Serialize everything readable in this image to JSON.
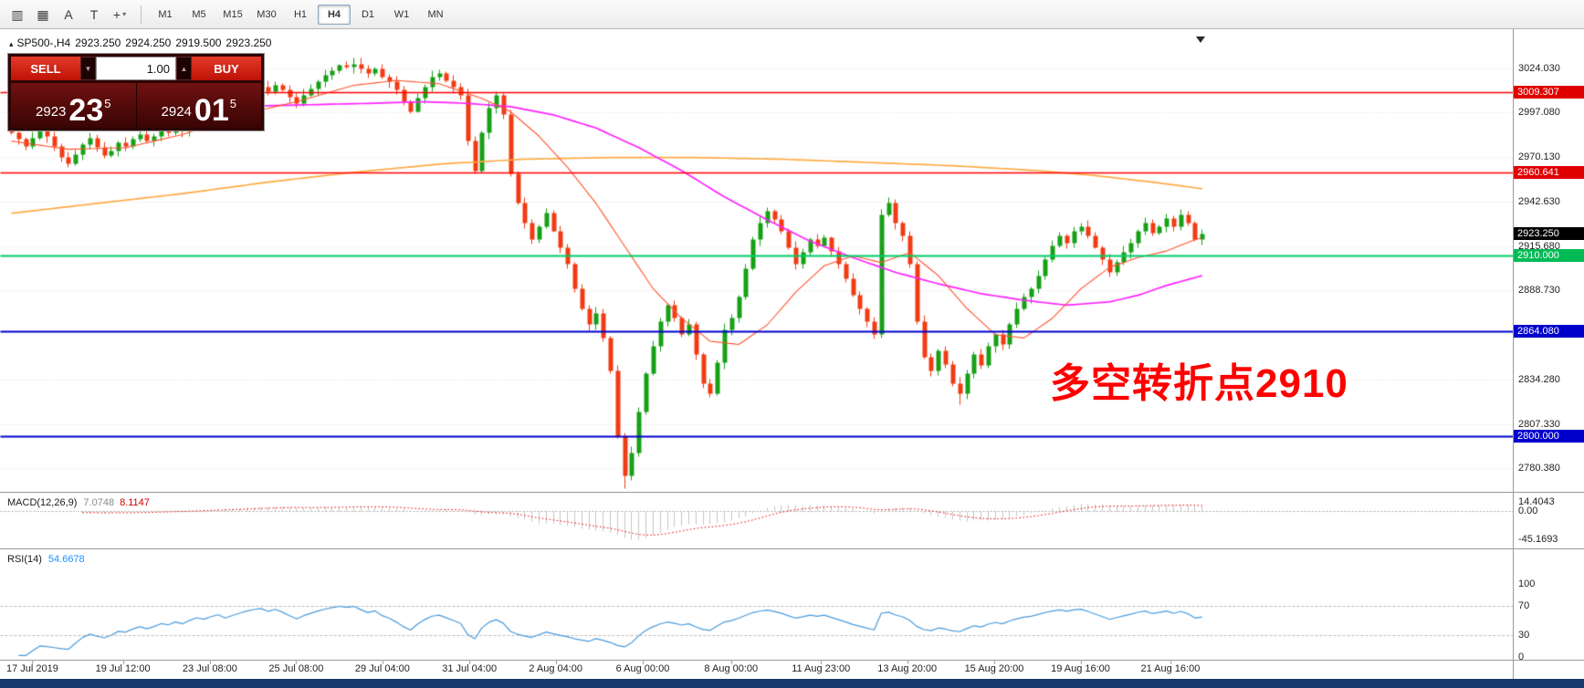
{
  "toolbar": {
    "icons": [
      {
        "name": "chart-properties-icon",
        "glyph": "▥",
        "caret": ""
      },
      {
        "name": "grid-icon",
        "glyph": "▦",
        "caret": ""
      },
      {
        "name": "font-icon",
        "glyph": "A",
        "caret": ""
      },
      {
        "name": "text-tool-icon",
        "glyph": "T",
        "caret": ""
      },
      {
        "name": "cursor-tool-icon",
        "glyph": "+",
        "caret": "▾"
      }
    ],
    "timeframes": [
      "M1",
      "M5",
      "M15",
      "M30",
      "H1",
      "H4",
      "D1",
      "W1",
      "MN"
    ],
    "active_timeframe": "H4"
  },
  "chart_header": {
    "collapse_icon": "▴",
    "symbol_period": "SP500-,H4",
    "open": "2923.250",
    "high": "2924.250",
    "low": "2919.500",
    "close": "2923.250"
  },
  "trade_panel": {
    "sell_label": "SELL",
    "buy_label": "BUY",
    "volume": "1.00",
    "spin_down_icon": "▼",
    "spin_up_icon": "▲",
    "sell_price": {
      "figure": "2923",
      "big": "23",
      "pip": "5"
    },
    "buy_price": {
      "figure": "2924",
      "big": "01",
      "pip": "5"
    }
  },
  "annotation": {
    "text": "多空转折点2910",
    "color": "#ff0000"
  },
  "macd_header": {
    "title": "MACD(12,26,9)",
    "value1": "7.0748",
    "value2": "8.1147"
  },
  "rsi_header": {
    "title": "RSI(14)",
    "value": "54.6678"
  },
  "price_axis": {
    "ticks": [
      {
        "label": "3024.030",
        "price": 3024.03,
        "style": "plain"
      },
      {
        "label": "3009.307",
        "price": 3009.307,
        "style": "red"
      },
      {
        "label": "2997.080",
        "price": 2997.08,
        "style": "plain"
      },
      {
        "label": "2970.130",
        "price": 2970.13,
        "style": "plain"
      },
      {
        "label": "2960.641",
        "price": 2960.641,
        "style": "red"
      },
      {
        "label": "2942.630",
        "price": 2942.63,
        "style": "plain"
      },
      {
        "label": "2923.250",
        "price": 2923.25,
        "style": "black"
      },
      {
        "label": "2915.680",
        "price": 2915.68,
        "style": "plain"
      },
      {
        "label": "2910.000",
        "price": 2910.0,
        "style": "green"
      },
      {
        "label": "2888.730",
        "price": 2888.73,
        "style": "plain"
      },
      {
        "label": "2864.080",
        "price": 2864.08,
        "style": "blue"
      },
      {
        "label": "2834.280",
        "price": 2834.28,
        "style": "plain"
      },
      {
        "label": "2807.330",
        "price": 2807.33,
        "style": "plain"
      },
      {
        "label": "2800.000",
        "price": 2800.0,
        "style": "blue"
      },
      {
        "label": "2780.380",
        "price": 2780.38,
        "style": "plain"
      }
    ]
  },
  "indicator_axis": {
    "macd": [
      {
        "label": "14.4043",
        "value": 14.4043
      },
      {
        "label": "0.00",
        "value": 0
      },
      {
        "label": "-45.1693",
        "value": -45.1693
      }
    ],
    "rsi": [
      {
        "label": "100",
        "value": 100
      },
      {
        "label": "70",
        "value": 70
      },
      {
        "label": "30",
        "value": 30
      },
      {
        "label": "0",
        "value": 0
      }
    ]
  },
  "time_axis": [
    {
      "label": "17 Jul 2019",
      "bar": 3
    },
    {
      "label": "19 Jul 12:00",
      "bar": 15.7
    },
    {
      "label": "23 Jul 08:00",
      "bar": 27.9
    },
    {
      "label": "25 Jul 08:00",
      "bar": 40
    },
    {
      "label": "29 Jul 04:00",
      "bar": 52.1
    },
    {
      "label": "31 Jul 04:00",
      "bar": 64.3
    },
    {
      "label": "2 Aug 04:00",
      "bar": 76.4
    },
    {
      "label": "6 Aug 00:00",
      "bar": 88.6
    },
    {
      "label": "8 Aug 00:00",
      "bar": 101
    },
    {
      "label": "11 Aug 23:00",
      "bar": 113.6
    },
    {
      "label": "13 Aug 20:00",
      "bar": 125.7
    },
    {
      "label": "15 Aug 20:00",
      "bar": 137.9
    },
    {
      "label": "19 Aug 16:00",
      "bar": 150
    },
    {
      "label": "21 Aug 16:00",
      "bar": 162.6
    }
  ],
  "chart_data": {
    "type": "candlestick",
    "symbol": "SP500-",
    "timeframe": "H4",
    "last_ohlc": [
      2923.25,
      2924.25,
      2919.5,
      2923.25
    ],
    "bid": 2923.235,
    "ask": 2924.015,
    "price_range_labels": [
      2780.38,
      3024.03
    ],
    "up_color": "#16a016",
    "down_color": "#f13b13",
    "closes": [
      2985,
      2981,
      2977,
      2982,
      2986,
      2983,
      2977,
      2970,
      2966,
      2972,
      2978,
      2982,
      2976,
      2971,
      2974,
      2979,
      2977,
      2981,
      2984,
      2980,
      2983,
      2987,
      2985,
      2989,
      2986,
      2991,
      2995,
      2993,
      2997,
      3000,
      2996,
      3000,
      3004,
      3008,
      3011,
      3013,
      3010,
      3014,
      3011,
      3007,
      3003,
      3008,
      3012,
      3016,
      3020,
      3023,
      3026,
      3025,
      3027,
      3024,
      3021,
      3024,
      3019,
      3016,
      3011,
      3004,
      2998,
      3006,
      3013,
      3019,
      3021,
      3017,
      3013,
      3008,
      2980,
      2962,
      2985,
      3000,
      3008,
      2996,
      2960,
      2942,
      2930,
      2920,
      2928,
      2936,
      2925,
      2915,
      2905,
      2890,
      2878,
      2868,
      2875,
      2860,
      2840,
      2800,
      2776,
      2790,
      2815,
      2838,
      2855,
      2870,
      2880,
      2872,
      2862,
      2868,
      2850,
      2832,
      2826,
      2845,
      2865,
      2872,
      2885,
      2902,
      2920,
      2930,
      2937,
      2932,
      2925,
      2915,
      2905,
      2912,
      2920,
      2916,
      2921,
      2913,
      2905,
      2896,
      2886,
      2878,
      2870,
      2862,
      2935,
      2942,
      2930,
      2922,
      2905,
      2870,
      2848,
      2840,
      2852,
      2844,
      2832,
      2826,
      2838,
      2850,
      2843,
      2855,
      2862,
      2856,
      2868,
      2878,
      2885,
      2890,
      2898,
      2908,
      2916,
      2922,
      2918,
      2925,
      2928,
      2922,
      2915,
      2908,
      2900,
      2906,
      2912,
      2918,
      2925,
      2930,
      2924,
      2928,
      2933,
      2928,
      2935,
      2930,
      2920,
      2923.25
    ],
    "levels": [
      {
        "price": 3009.307,
        "color": "#ff0000",
        "width": 1.4
      },
      {
        "price": 2960.641,
        "color": "#ff0000",
        "width": 1.4
      },
      {
        "price": 2910.0,
        "color": "#00cc66",
        "width": 1.8
      },
      {
        "price": 2864.08,
        "color": "#0000cd",
        "width": 1.8
      },
      {
        "price": 2800.0,
        "color": "#0000cd",
        "width": 1.8
      }
    ],
    "moving_averages": [
      {
        "name": "ma-slow",
        "color": "#ffab45",
        "width": 1.7,
        "keypoints": [
          [
            0,
            2936
          ],
          [
            12,
            2942
          ],
          [
            24,
            2948
          ],
          [
            36,
            2955
          ],
          [
            48,
            2961
          ],
          [
            60,
            2966
          ],
          [
            72,
            2969
          ],
          [
            84,
            2970
          ],
          [
            96,
            2970
          ],
          [
            108,
            2969
          ],
          [
            120,
            2967
          ],
          [
            132,
            2965
          ],
          [
            144,
            2962
          ],
          [
            152,
            2959
          ],
          [
            160,
            2955
          ],
          [
            167,
            2951
          ]
        ]
      },
      {
        "name": "ma-mid",
        "color": "#ff22ff",
        "width": 1.7,
        "keypoints": [
          [
            30,
            3001
          ],
          [
            40,
            3002
          ],
          [
            50,
            3003
          ],
          [
            58,
            3004
          ],
          [
            64,
            3003
          ],
          [
            70,
            3001
          ],
          [
            76,
            2996
          ],
          [
            82,
            2988
          ],
          [
            88,
            2976
          ],
          [
            94,
            2962
          ],
          [
            100,
            2946
          ],
          [
            106,
            2932
          ],
          [
            112,
            2919
          ],
          [
            118,
            2909
          ],
          [
            124,
            2900
          ],
          [
            130,
            2893
          ],
          [
            136,
            2887
          ],
          [
            142,
            2883
          ],
          [
            148,
            2880
          ],
          [
            154,
            2882
          ],
          [
            158,
            2886
          ],
          [
            162,
            2892
          ],
          [
            167,
            2898
          ]
        ]
      },
      {
        "name": "ma-fast",
        "color": "#ff5530",
        "width": 1.1,
        "keypoints": [
          [
            0,
            2980
          ],
          [
            8,
            2975
          ],
          [
            16,
            2976
          ],
          [
            24,
            2984
          ],
          [
            32,
            2996
          ],
          [
            40,
            3004
          ],
          [
            48,
            3014
          ],
          [
            54,
            3017
          ],
          [
            60,
            3015
          ],
          [
            66,
            3006
          ],
          [
            70,
            2998
          ],
          [
            74,
            2983
          ],
          [
            78,
            2964
          ],
          [
            82,
            2942
          ],
          [
            86,
            2916
          ],
          [
            90,
            2890
          ],
          [
            94,
            2872
          ],
          [
            98,
            2858
          ],
          [
            102,
            2856
          ],
          [
            106,
            2868
          ],
          [
            110,
            2888
          ],
          [
            114,
            2904
          ],
          [
            118,
            2910
          ],
          [
            122,
            2906
          ],
          [
            126,
            2912
          ],
          [
            130,
            2898
          ],
          [
            134,
            2878
          ],
          [
            138,
            2862
          ],
          [
            142,
            2860
          ],
          [
            146,
            2872
          ],
          [
            150,
            2890
          ],
          [
            154,
            2903
          ],
          [
            158,
            2909
          ],
          [
            162,
            2913
          ],
          [
            166,
            2920
          ],
          [
            167,
            2921
          ]
        ]
      }
    ],
    "indicators": {
      "macd": {
        "fast": 12,
        "slow": 26,
        "signal": 9,
        "current": [
          7.0748,
          8.1147
        ],
        "range": [
          -45.1693,
          14.4043
        ]
      },
      "rsi": {
        "period": 14,
        "current": 54.6678,
        "levels": [
          30,
          70
        ],
        "range": [
          0,
          100
        ]
      }
    }
  }
}
